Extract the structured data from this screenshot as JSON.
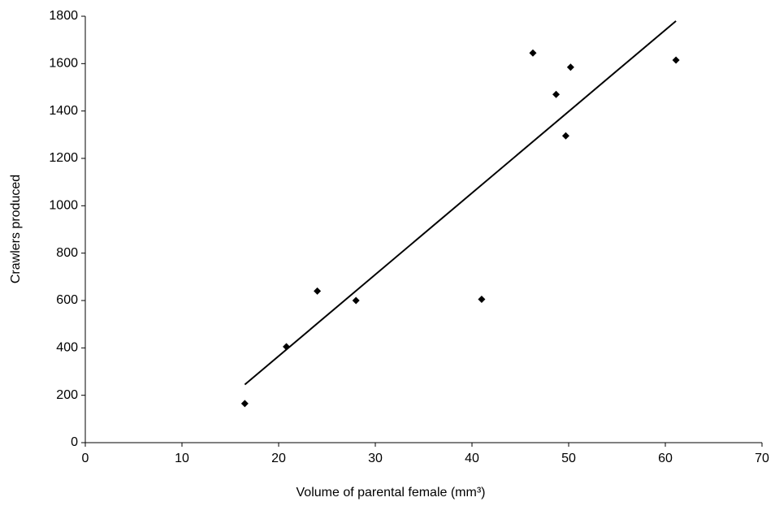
{
  "chart_data": {
    "type": "scatter",
    "x_label": "Volume of parental female (mm³)",
    "y_label": "Crawlers produced",
    "x": [
      16.5,
      20.8,
      24,
      28,
      41,
      46.3,
      48.7,
      50.2,
      49.7,
      61.1
    ],
    "values": [
      165,
      405,
      640,
      600,
      605,
      1645,
      1470,
      1585,
      1295,
      1615
    ],
    "color": "#000000",
    "trendline": {
      "x": [
        16.5,
        61.1
      ],
      "values": [
        245,
        1780
      ],
      "color": "#000000"
    },
    "xlim": [
      0,
      70
    ],
    "xticks": [
      0,
      10,
      20,
      30,
      40,
      50,
      60,
      70
    ],
    "ylim": [
      0,
      1800
    ],
    "yticks": [
      0,
      200,
      400,
      600,
      800,
      1000,
      1200,
      1400,
      1600,
      1800
    ],
    "grid": false
  }
}
